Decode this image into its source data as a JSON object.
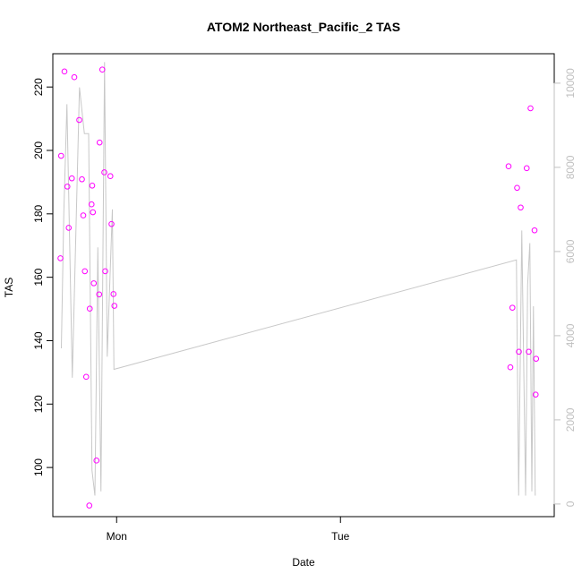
{
  "chart_data": {
    "type": "scatter",
    "title": "ATOM2 Northeast_Pacific_2 TAS",
    "xlabel": "Date",
    "ylabel": "TAS",
    "x_axis": {
      "type": "time",
      "range_hours": [
        -2.85,
        19.55
      ],
      "ticks": [
        {
          "label": "Mon",
          "value": 0
        },
        {
          "label": "Tue",
          "value": 10
        }
      ]
    },
    "y_axis_left": {
      "range": [
        84.5,
        230.5
      ],
      "ticks": [
        100,
        120,
        140,
        160,
        180,
        200,
        220
      ]
    },
    "y_axis_right": {
      "range": [
        -300,
        10700
      ],
      "ticks": [
        0,
        2000,
        4000,
        6000,
        8000,
        10000
      ],
      "color": "#c0c0c0"
    },
    "grid": false,
    "points_color": "#ff00ff",
    "line_color": "#c8c8c8",
    "series": [
      {
        "type": "scatter",
        "axis": "left",
        "points": [
          [
            -2.51,
            166.0
          ],
          [
            -2.48,
            198.3
          ],
          [
            -2.33,
            224.9
          ],
          [
            -2.2,
            188.6
          ],
          [
            -2.14,
            175.6
          ],
          [
            -2.0,
            191.2
          ],
          [
            -1.89,
            223.1
          ],
          [
            -1.67,
            209.6
          ],
          [
            -1.55,
            190.9
          ],
          [
            -1.49,
            179.5
          ],
          [
            -1.42,
            161.9
          ],
          [
            -1.36,
            128.6
          ],
          [
            -1.22,
            88.0
          ],
          [
            -1.2,
            150.1
          ],
          [
            -1.12,
            183.0
          ],
          [
            -1.09,
            188.9
          ],
          [
            -1.06,
            180.5
          ],
          [
            -1.02,
            158.1
          ],
          [
            -0.9,
            102.2
          ],
          [
            -0.78,
            154.6
          ],
          [
            -0.76,
            202.5
          ],
          [
            -0.64,
            225.5
          ],
          [
            -0.55,
            193.1
          ],
          [
            -0.51,
            161.9
          ],
          [
            -0.28,
            191.9
          ],
          [
            -0.23,
            176.8
          ],
          [
            -0.14,
            154.7
          ],
          [
            -0.1,
            151.0
          ],
          [
            17.51,
            195.0
          ],
          [
            17.59,
            131.6
          ],
          [
            17.68,
            150.4
          ],
          [
            17.89,
            188.2
          ],
          [
            17.97,
            136.5
          ],
          [
            18.05,
            182.0
          ],
          [
            18.32,
            194.4
          ],
          [
            18.41,
            136.5
          ],
          [
            18.49,
            213.3
          ],
          [
            18.67,
            174.8
          ],
          [
            18.72,
            123.0
          ],
          [
            18.74,
            134.3
          ]
        ]
      },
      {
        "type": "line",
        "axis": "right",
        "points": [
          [
            -2.47,
            3700
          ],
          [
            -2.36,
            6900
          ],
          [
            -2.22,
            9500
          ],
          [
            -1.98,
            3000
          ],
          [
            -1.66,
            9900
          ],
          [
            -1.44,
            8800
          ],
          [
            -1.25,
            8800
          ],
          [
            -1.1,
            800
          ],
          [
            -0.97,
            200
          ],
          [
            -0.84,
            6100
          ],
          [
            -0.7,
            300
          ],
          [
            -0.54,
            10500
          ],
          [
            -0.42,
            3500
          ],
          [
            -0.19,
            7000
          ],
          [
            -0.12,
            3200
          ],
          [
            17.86,
            5800
          ],
          [
            17.96,
            200
          ],
          [
            18.1,
            6500
          ],
          [
            18.27,
            200
          ],
          [
            18.36,
            5200
          ],
          [
            18.46,
            6200
          ],
          [
            18.55,
            300
          ],
          [
            18.62,
            4700
          ],
          [
            18.7,
            200
          ]
        ]
      }
    ]
  }
}
